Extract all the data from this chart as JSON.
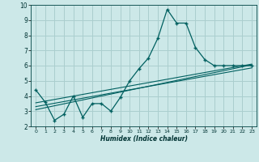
{
  "xlabel": "Humidex (Indice chaleur)",
  "bg_color": "#cce8e8",
  "grid_color": "#aacece",
  "line_color": "#006060",
  "xlim": [
    -0.5,
    23.5
  ],
  "ylim": [
    2,
    10
  ],
  "xticks": [
    0,
    1,
    2,
    3,
    4,
    5,
    6,
    7,
    8,
    9,
    10,
    11,
    12,
    13,
    14,
    15,
    16,
    17,
    18,
    19,
    20,
    21,
    22,
    23
  ],
  "yticks": [
    2,
    3,
    4,
    5,
    6,
    7,
    8,
    9,
    10
  ],
  "main_x": [
    0,
    1,
    2,
    3,
    4,
    5,
    6,
    7,
    8,
    9,
    10,
    11,
    12,
    13,
    14,
    15,
    16,
    17,
    18,
    19,
    20,
    21,
    22,
    23
  ],
  "main_y": [
    4.4,
    3.6,
    2.4,
    2.8,
    4.0,
    2.6,
    3.5,
    3.5,
    3.0,
    3.9,
    5.0,
    5.8,
    6.5,
    7.8,
    9.7,
    8.8,
    8.8,
    7.2,
    6.4,
    6.0,
    6.0,
    6.0,
    6.0,
    6.0
  ],
  "line1_x": [
    0,
    23
  ],
  "line1_y": [
    3.1,
    6.05
  ],
  "line2_x": [
    0,
    23
  ],
  "line2_y": [
    3.3,
    5.85
  ],
  "line3_x": [
    0,
    23
  ],
  "line3_y": [
    3.55,
    6.1
  ]
}
